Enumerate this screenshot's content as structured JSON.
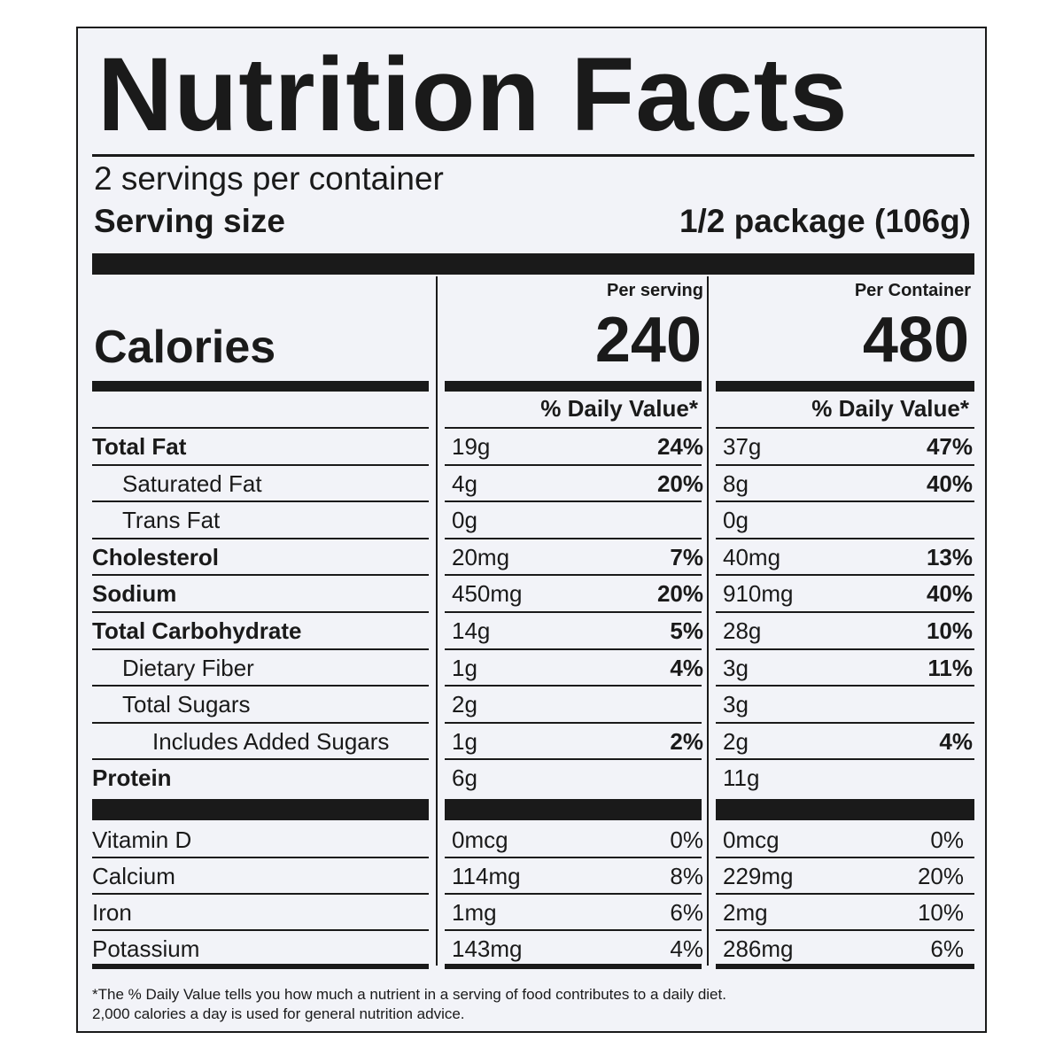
{
  "title": "Nutrition Facts",
  "servings_per_container": "2 servings per container",
  "serving_size_label": "Serving size",
  "serving_size_value": "1/2 package (106g)",
  "calories_label": "Calories",
  "columns": {
    "per_serving_header": "Per serving",
    "per_container_header": "Per Container",
    "per_serving_calories": "240",
    "per_container_calories": "480",
    "daily_value_header": "% Daily Value*"
  },
  "nutrients": [
    {
      "name": "Total Fat",
      "s_amt": "19g",
      "s_dv": "24%",
      "c_amt": "37g",
      "c_dv": "47%"
    },
    {
      "name": "Saturated Fat",
      "s_amt": "4g",
      "s_dv": "20%",
      "c_amt": "8g",
      "c_dv": "40%"
    },
    {
      "name": "Trans Fat",
      "s_amt": "0g",
      "s_dv": "",
      "c_amt": "0g",
      "c_dv": ""
    },
    {
      "name": "Cholesterol",
      "s_amt": "20mg",
      "s_dv": "7%",
      "c_amt": "40mg",
      "c_dv": "13%"
    },
    {
      "name": "Sodium",
      "s_amt": "450mg",
      "s_dv": "20%",
      "c_amt": "910mg",
      "c_dv": "40%"
    },
    {
      "name": "Total Carbohydrate",
      "s_amt": "14g",
      "s_dv": "5%",
      "c_amt": "28g",
      "c_dv": "10%"
    },
    {
      "name": "Dietary Fiber",
      "s_amt": "1g",
      "s_dv": "4%",
      "c_amt": "3g",
      "c_dv": "11%"
    },
    {
      "name": "Total Sugars",
      "s_amt": "2g",
      "s_dv": "",
      "c_amt": "3g",
      "c_dv": ""
    },
    {
      "name": "Includes Added Sugars",
      "s_amt": "1g",
      "s_dv": "2%",
      "c_amt": "2g",
      "c_dv": "4%"
    },
    {
      "name": "Protein",
      "s_amt": "6g",
      "s_dv": "",
      "c_amt": "11g",
      "c_dv": ""
    }
  ],
  "vitamins": [
    {
      "name": "Vitamin D",
      "s_amt": "0mcg",
      "s_dv": "0%",
      "c_amt": "0mcg",
      "c_dv": "0%"
    },
    {
      "name": "Calcium",
      "s_amt": "114mg",
      "s_dv": "8%",
      "c_amt": "229mg",
      "c_dv": "20%"
    },
    {
      "name": "Iron",
      "s_amt": "1mg",
      "s_dv": "6%",
      "c_amt": "2mg",
      "c_dv": "10%"
    },
    {
      "name": "Potassium",
      "s_amt": "143mg",
      "s_dv": "4%",
      "c_amt": "286mg",
      "c_dv": "6%"
    }
  ],
  "footnote_line1": "*The % Daily Value tells you how much a nutrient in a serving of food contributes to a daily diet.",
  "footnote_line2": "2,000 calories a day is used for general nutrition advice."
}
